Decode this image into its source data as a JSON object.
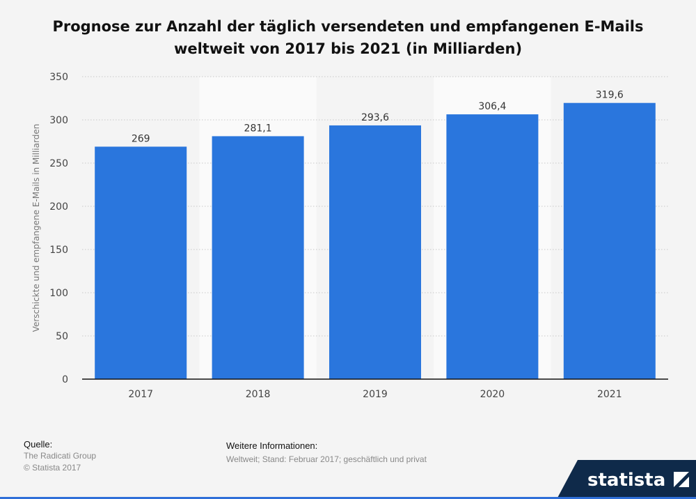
{
  "title_line1": "Prognose zur Anzahl der täglich versendeten und empfangenen E-Mails",
  "title_line2": "weltweit von 2017 bis 2021 (in Milliarden)",
  "chart_data": {
    "type": "bar",
    "categories": [
      "2017",
      "2018",
      "2019",
      "2020",
      "2021"
    ],
    "values": [
      269,
      281.1,
      293.6,
      306.4,
      319.6
    ],
    "value_labels": [
      "269",
      "281,1",
      "293,6",
      "306,4",
      "319,6"
    ],
    "ylabel": "Verschickte und empfangene E-Mails in Milliarden",
    "ylim": [
      0,
      350
    ],
    "yticks": [
      0,
      50,
      100,
      150,
      200,
      250,
      300,
      350
    ],
    "grid": true,
    "bar_color": "#2a76dd"
  },
  "footer": {
    "source_heading": "Quelle:",
    "source_lines": [
      "The Radicati Group",
      "© Statista 2017"
    ],
    "info_heading": "Weitere Informationen:",
    "info_text": "Weltweit; Stand: Februar 2017; geschäftlich und privat"
  },
  "logo_text": "statista"
}
